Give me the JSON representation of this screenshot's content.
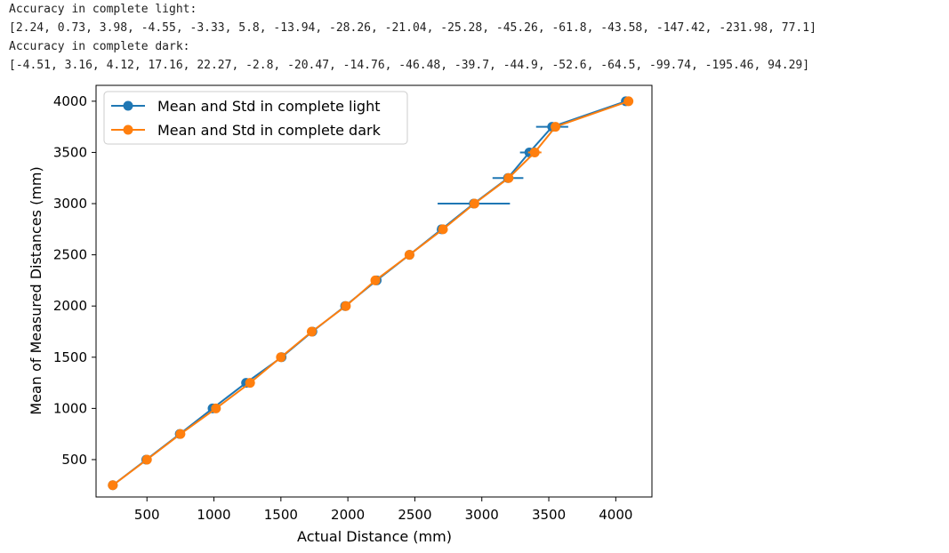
{
  "output": {
    "light_label": "Accuracy in complete light:",
    "light_values": "[2.24, 0.73, 3.98, -4.55, -3.33, 5.8, -13.94, -28.26, -21.04, -25.28, -45.26, -61.8, -43.58, -147.42, -231.98, 77.1]",
    "dark_label": "Accuracy in complete dark:",
    "dark_values": "[-4.51, 3.16, 4.12, 17.16, 22.27, -2.8, -20.47, -14.76, -46.48, -39.7, -44.9, -52.6, -64.5, -99.74, -195.46, 94.29]"
  },
  "colors": {
    "light": "#1f77b4",
    "dark": "#ff7f0e"
  },
  "chart_data": {
    "type": "line",
    "title": "",
    "xlabel": "Actual Distance (mm)",
    "ylabel": "Mean of Measured Distances (mm)",
    "xlim": [
      120,
      4270
    ],
    "ylim": [
      135,
      4155
    ],
    "xticks": [
      500,
      1000,
      1500,
      2000,
      2500,
      3000,
      3500,
      4000
    ],
    "yticks": [
      500,
      1000,
      1500,
      2000,
      2500,
      3000,
      3500,
      4000
    ],
    "grid": false,
    "legend_position": "top-left",
    "series": [
      {
        "name": "Mean and Std in complete light",
        "color": "#1f77b4",
        "marker": "circle",
        "x": [
          245,
          495,
          745,
          990,
          1240,
          1505,
          1735,
          1980,
          2215,
          2460,
          2700,
          2940,
          3195,
          3355,
          3525,
          4075
        ],
        "y": [
          250,
          500,
          750,
          1000,
          1250,
          1500,
          1750,
          2000,
          2250,
          2500,
          2750,
          3000,
          3250,
          3500,
          3750,
          4000
        ],
        "xerr": [
          4,
          3,
          4,
          10,
          8,
          6,
          5,
          12,
          9,
          10,
          20,
          270,
          115,
          70,
          120,
          6
        ]
      },
      {
        "name": "Mean and Std in complete dark",
        "color": "#ff7f0e",
        "marker": "circle",
        "x": [
          245,
          500,
          750,
          1015,
          1270,
          1500,
          1730,
          1985,
          2205,
          2460,
          2710,
          2945,
          3200,
          3395,
          3550,
          4095
        ],
        "y": [
          250,
          500,
          750,
          1000,
          1250,
          1500,
          1750,
          2000,
          2250,
          2500,
          2750,
          3000,
          3250,
          3500,
          3750,
          4000
        ],
        "xerr": [
          4,
          3,
          4,
          8,
          8,
          6,
          5,
          8,
          8,
          8,
          15,
          30,
          30,
          50,
          25,
          6
        ]
      }
    ]
  }
}
